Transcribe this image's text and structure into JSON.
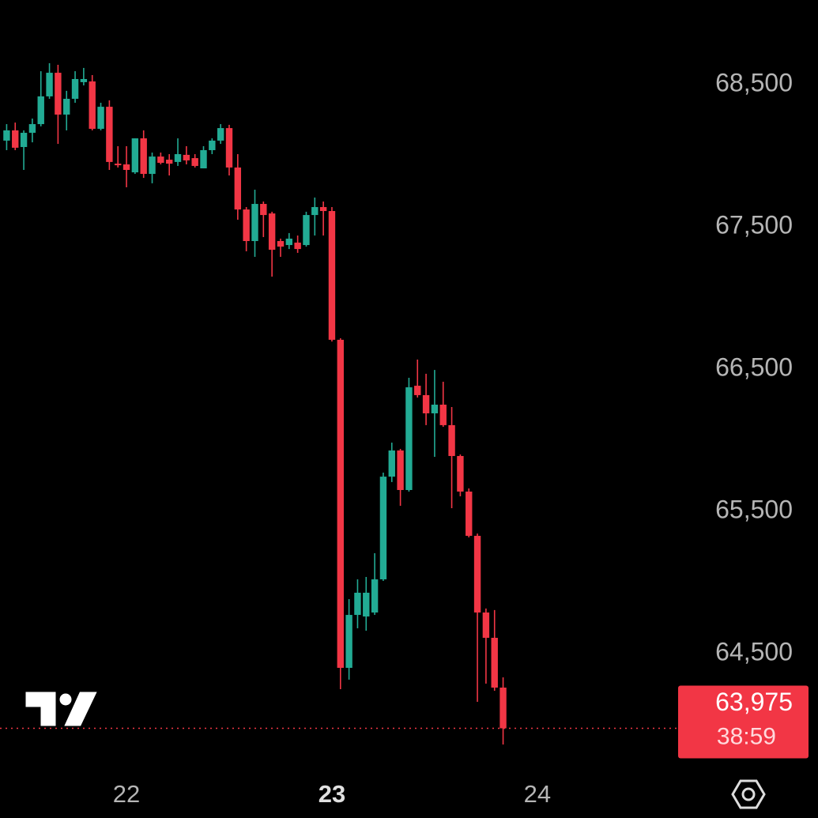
{
  "chart_data": {
    "type": "candlestick",
    "categories": [
      null,
      null,
      null,
      null,
      null,
      null,
      null,
      null,
      null,
      null,
      null,
      null,
      null,
      null,
      "22",
      null,
      null,
      null,
      null,
      null,
      null,
      null,
      null,
      null,
      null,
      null,
      null,
      null,
      null,
      null,
      null,
      null,
      null,
      null,
      null,
      null,
      null,
      null,
      "23",
      null,
      null,
      null,
      null,
      null,
      null,
      null,
      null,
      null,
      null,
      null,
      null,
      null,
      null,
      null,
      null,
      null,
      null,
      null,
      null,
      null,
      null,
      null,
      "24"
    ],
    "emphasized_category": 38,
    "open": [
      68106,
      68178,
      68061,
      68161,
      68222,
      68417,
      68583,
      68289,
      68400,
      68517,
      68522,
      68189,
      68344,
      67944,
      67939,
      67883,
      68122,
      67872,
      67994,
      67972,
      67956,
      68006,
      67983,
      67911,
      68039,
      68106,
      68194,
      67917,
      67622,
      67400,
      67661,
      67594,
      67400,
      67372,
      67389,
      67372,
      67583,
      67639,
      67611,
      66706,
      64400,
      64772,
      64761,
      64789,
      65022,
      65744,
      65928,
      65650,
      66383,
      66317,
      66189,
      66250,
      66106,
      65889,
      65639,
      65328,
      64789,
      64611,
      64261,
      null,
      null,
      null,
      null
    ],
    "high": [
      68222,
      68233,
      68178,
      68261,
      68594,
      68650,
      68639,
      68456,
      68594,
      68617,
      68567,
      68372,
      68389,
      68067,
      68067,
      68122,
      68178,
      68022,
      68022,
      68011,
      68122,
      68067,
      68011,
      68067,
      68122,
      68222,
      68217,
      68011,
      67639,
      67761,
      67678,
      67606,
      67417,
      67456,
      67439,
      67606,
      67706,
      67678,
      67639,
      66717,
      64883,
      65022,
      65039,
      65206,
      65772,
      65983,
      65939,
      66439,
      66567,
      66467,
      66494,
      66411,
      66233,
      65900,
      65661,
      65344,
      64817,
      64806,
      64333,
      null,
      null,
      null,
      null
    ],
    "low": [
      68039,
      68039,
      67900,
      68094,
      68206,
      68400,
      68083,
      68178,
      68372,
      68494,
      68178,
      68178,
      67900,
      67917,
      67778,
      67872,
      67844,
      67806,
      67939,
      67861,
      67928,
      67939,
      67917,
      67911,
      68011,
      68083,
      67861,
      67550,
      67328,
      67289,
      67428,
      67150,
      67289,
      67344,
      67317,
      67361,
      67439,
      67439,
      66694,
      64250,
      64317,
      64678,
      64661,
      64772,
      65011,
      65706,
      65539,
      65639,
      66300,
      66106,
      65883,
      66094,
      65522,
      65606,
      65317,
      64161,
      64289,
      64239,
      63861,
      null,
      null,
      null,
      null
    ],
    "close": [
      68178,
      68056,
      68161,
      68222,
      68417,
      68583,
      68289,
      68400,
      68539,
      68539,
      68189,
      68344,
      67956,
      67933,
      67900,
      68122,
      67872,
      67994,
      67950,
      67944,
      68011,
      67967,
      67928,
      68039,
      68106,
      68194,
      67917,
      67622,
      67400,
      67661,
      67583,
      67339,
      67361,
      67417,
      67344,
      67583,
      67639,
      67611,
      66706,
      64400,
      64772,
      64928,
      64928,
      65022,
      65744,
      65928,
      65650,
      66372,
      66317,
      66189,
      66250,
      66106,
      65889,
      65639,
      65328,
      64789,
      64611,
      64261,
      63975,
      null,
      null,
      null,
      null
    ],
    "up_color": "#22ab94",
    "down_color": "#f23645",
    "ylim": [
      63700,
      69100
    ],
    "yticks": [
      {
        "value": 64500,
        "label": "64,500"
      },
      {
        "value": 65500,
        "label": "65,500"
      },
      {
        "value": 66500,
        "label": "66,500"
      },
      {
        "value": 67500,
        "label": "67,500"
      },
      {
        "value": 68500,
        "label": "68,500"
      }
    ],
    "last_price": {
      "value": 63975,
      "label": "63,975"
    },
    "countdown": "38:59"
  }
}
